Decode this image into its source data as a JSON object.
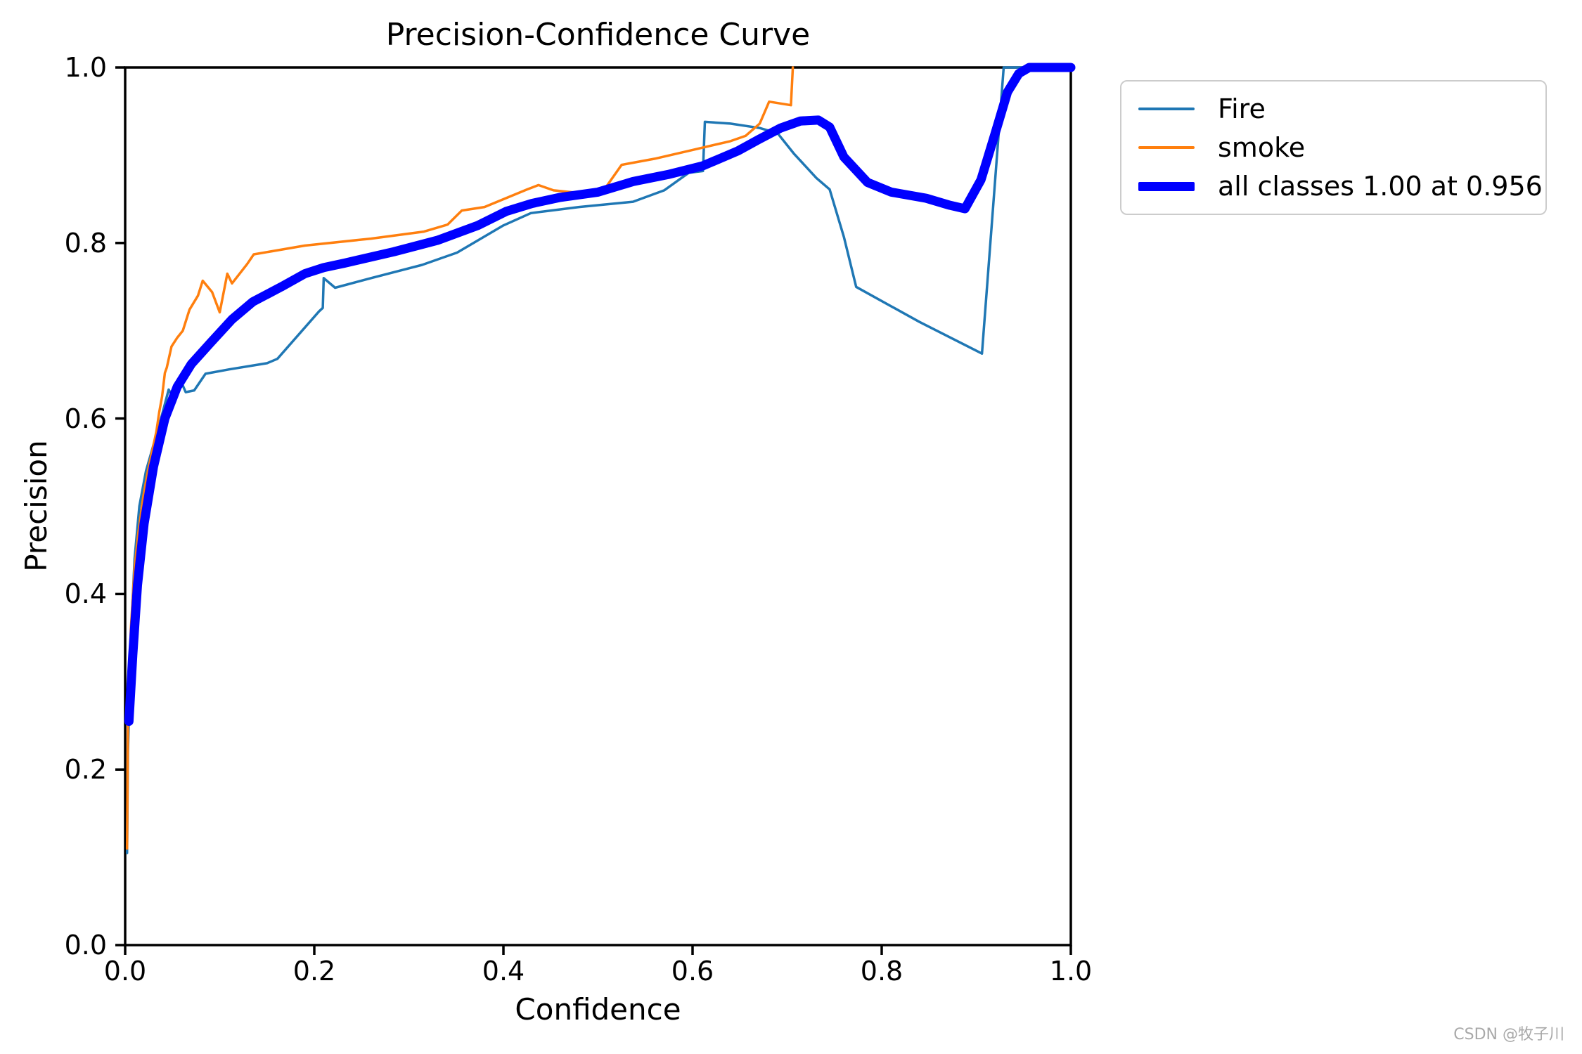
{
  "page": {
    "background": "#ffffff",
    "watermark": "CSDN @牧子川"
  },
  "chart_data": {
    "type": "line",
    "title": "Precision-Confidence Curve",
    "xlabel": "Confidence",
    "ylabel": "Precision",
    "xlim": [
      0.0,
      1.0
    ],
    "ylim": [
      0.0,
      1.0
    ],
    "grid": false,
    "legend_position": "upper-right-outside",
    "x_ticks": [
      "0.0",
      "0.2",
      "0.4",
      "0.6",
      "0.8",
      "1.0"
    ],
    "x_tick_values": [
      0.0,
      0.2,
      0.4,
      0.6,
      0.8,
      1.0
    ],
    "y_ticks": [
      "1.0",
      "0.8",
      "0.6",
      "0.4",
      "0.2",
      "0.0"
    ],
    "y_tick_values": [
      1.0,
      0.8,
      0.6,
      0.4,
      0.2,
      0.0
    ],
    "axis_color": "#000000",
    "series": [
      {
        "name": "Fire",
        "slug": "fire",
        "color": "#1f77b4",
        "line_width": 3.5,
        "points": [
          [
            0.002,
            0.105
          ],
          [
            0.003,
            0.22
          ],
          [
            0.006,
            0.35
          ],
          [
            0.01,
            0.44
          ],
          [
            0.015,
            0.5
          ],
          [
            0.022,
            0.54
          ],
          [
            0.03,
            0.57
          ],
          [
            0.038,
            0.6
          ],
          [
            0.046,
            0.633
          ],
          [
            0.051,
            0.624
          ],
          [
            0.058,
            0.645
          ],
          [
            0.064,
            0.63
          ],
          [
            0.073,
            0.632
          ],
          [
            0.085,
            0.651
          ],
          [
            0.11,
            0.656
          ],
          [
            0.15,
            0.663
          ],
          [
            0.161,
            0.668
          ],
          [
            0.205,
            0.722
          ],
          [
            0.209,
            0.726
          ],
          [
            0.21,
            0.76
          ],
          [
            0.222,
            0.749
          ],
          [
            0.26,
            0.76
          ],
          [
            0.314,
            0.775
          ],
          [
            0.351,
            0.789
          ],
          [
            0.4,
            0.82
          ],
          [
            0.429,
            0.834
          ],
          [
            0.48,
            0.841
          ],
          [
            0.537,
            0.847
          ],
          [
            0.57,
            0.86
          ],
          [
            0.596,
            0.88
          ],
          [
            0.611,
            0.882
          ],
          [
            0.613,
            0.938
          ],
          [
            0.64,
            0.936
          ],
          [
            0.671,
            0.931
          ],
          [
            0.69,
            0.925
          ],
          [
            0.707,
            0.902
          ],
          [
            0.731,
            0.874
          ],
          [
            0.745,
            0.861
          ],
          [
            0.76,
            0.807
          ],
          [
            0.773,
            0.75
          ],
          [
            0.84,
            0.71
          ],
          [
            0.906,
            0.674
          ],
          [
            0.929,
            1.0
          ],
          [
            1.0,
            1.0
          ]
        ]
      },
      {
        "name": "smoke",
        "slug": "smoke",
        "color": "#ff7f0e",
        "line_width": 3.5,
        "points": [
          [
            0.002,
            0.11
          ],
          [
            0.003,
            0.25
          ],
          [
            0.006,
            0.36
          ],
          [
            0.01,
            0.43
          ],
          [
            0.014,
            0.47
          ],
          [
            0.019,
            0.51
          ],
          [
            0.024,
            0.54
          ],
          [
            0.029,
            0.565
          ],
          [
            0.033,
            0.585
          ],
          [
            0.036,
            0.607
          ],
          [
            0.039,
            0.625
          ],
          [
            0.042,
            0.652
          ],
          [
            0.044,
            0.658
          ],
          [
            0.049,
            0.682
          ],
          [
            0.055,
            0.692
          ],
          [
            0.061,
            0.7
          ],
          [
            0.068,
            0.724
          ],
          [
            0.077,
            0.74
          ],
          [
            0.082,
            0.757
          ],
          [
            0.092,
            0.744
          ],
          [
            0.1,
            0.721
          ],
          [
            0.108,
            0.765
          ],
          [
            0.113,
            0.754
          ],
          [
            0.129,
            0.776
          ],
          [
            0.136,
            0.787
          ],
          [
            0.19,
            0.797
          ],
          [
            0.26,
            0.805
          ],
          [
            0.316,
            0.813
          ],
          [
            0.341,
            0.821
          ],
          [
            0.356,
            0.837
          ],
          [
            0.38,
            0.841
          ],
          [
            0.425,
            0.861
          ],
          [
            0.437,
            0.866
          ],
          [
            0.453,
            0.86
          ],
          [
            0.48,
            0.857
          ],
          [
            0.506,
            0.86
          ],
          [
            0.525,
            0.889
          ],
          [
            0.56,
            0.896
          ],
          [
            0.6,
            0.906
          ],
          [
            0.64,
            0.916
          ],
          [
            0.656,
            0.922
          ],
          [
            0.671,
            0.936
          ],
          [
            0.681,
            0.961
          ],
          [
            0.704,
            0.957
          ],
          [
            0.706,
            1.0
          ]
        ]
      },
      {
        "name": "all classes 1.00 at 0.956",
        "slug": "all-classes",
        "color": "#0000ff",
        "line_width": 13,
        "points": [
          [
            0.004,
            0.255
          ],
          [
            0.008,
            0.33
          ],
          [
            0.013,
            0.41
          ],
          [
            0.02,
            0.48
          ],
          [
            0.03,
            0.545
          ],
          [
            0.042,
            0.6
          ],
          [
            0.055,
            0.636
          ],
          [
            0.07,
            0.662
          ],
          [
            0.09,
            0.686
          ],
          [
            0.113,
            0.713
          ],
          [
            0.135,
            0.733
          ],
          [
            0.165,
            0.75
          ],
          [
            0.19,
            0.765
          ],
          [
            0.21,
            0.772
          ],
          [
            0.232,
            0.777
          ],
          [
            0.284,
            0.79
          ],
          [
            0.33,
            0.803
          ],
          [
            0.373,
            0.82
          ],
          [
            0.403,
            0.836
          ],
          [
            0.43,
            0.845
          ],
          [
            0.46,
            0.852
          ],
          [
            0.5,
            0.858
          ],
          [
            0.537,
            0.87
          ],
          [
            0.574,
            0.878
          ],
          [
            0.611,
            0.888
          ],
          [
            0.648,
            0.905
          ],
          [
            0.67,
            0.918
          ],
          [
            0.693,
            0.931
          ],
          [
            0.714,
            0.939
          ],
          [
            0.733,
            0.94
          ],
          [
            0.745,
            0.932
          ],
          [
            0.76,
            0.898
          ],
          [
            0.785,
            0.869
          ],
          [
            0.81,
            0.858
          ],
          [
            0.847,
            0.851
          ],
          [
            0.872,
            0.843
          ],
          [
            0.888,
            0.839
          ],
          [
            0.905,
            0.872
          ],
          [
            0.92,
            0.925
          ],
          [
            0.933,
            0.972
          ],
          [
            0.945,
            0.993
          ],
          [
            0.956,
            1.0
          ],
          [
            1.0,
            1.0
          ]
        ]
      }
    ]
  }
}
